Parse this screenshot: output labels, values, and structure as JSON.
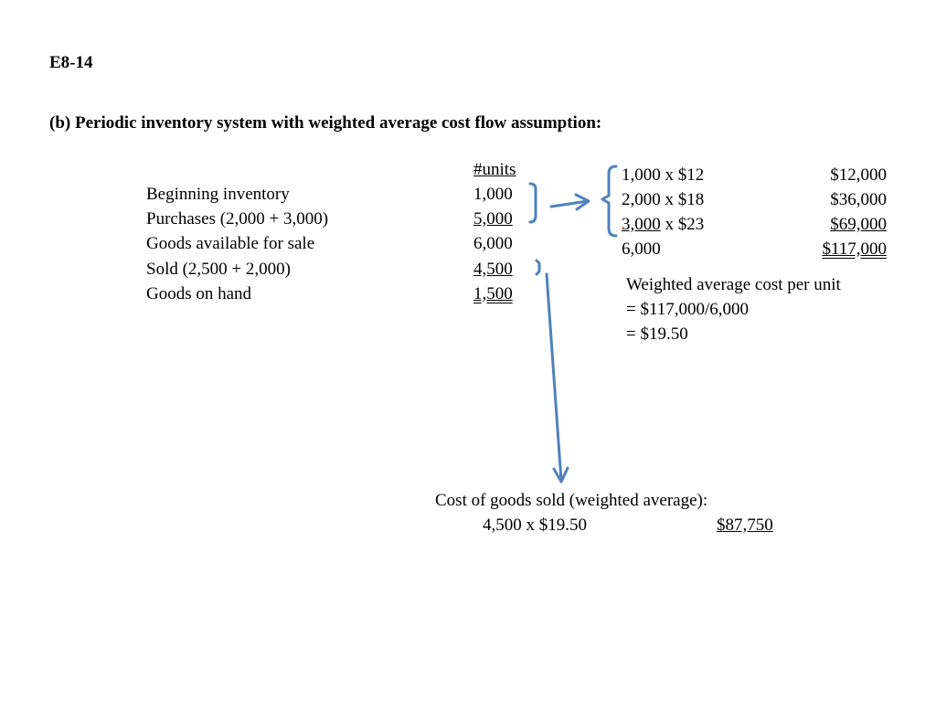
{
  "heading": "E8-14",
  "subtitle": "(b)  Periodic inventory system with weighted average cost flow assumption:",
  "units_header": "#units",
  "rows": [
    {
      "label": "Beginning inventory",
      "units": "1,000"
    },
    {
      "label": "Purchases (2,000 + 3,000)",
      "units": "5,000"
    },
    {
      "label": "Goods available for sale",
      "units": "6,000"
    },
    {
      "label": "Sold (2,500 + 2,000)",
      "units": "4,500"
    },
    {
      "label": "Goods on hand",
      "units": "1,500"
    }
  ],
  "cost_calc": [
    {
      "qty": "1,000",
      "rate": " x $12",
      "amount": "$12,000"
    },
    {
      "qty": "2,000",
      "rate": " x $18",
      "amount": "$36,000"
    },
    {
      "qty": "3,000",
      "rate": " x $23",
      "amount": "$69,000"
    },
    {
      "qty": "6,000",
      "rate": "",
      "amount": "$117,000"
    }
  ],
  "weighted_avg": {
    "line1": "Weighted average cost per unit",
    "line2": "= $117,000/6,000",
    "line3": "= $19.50"
  },
  "cogs": {
    "label": "Cost of goods sold (weighted average):",
    "calc": "4,500 x $19.50",
    "amount": "$87,750"
  },
  "colors": {
    "arrow": "#4f81bd"
  }
}
